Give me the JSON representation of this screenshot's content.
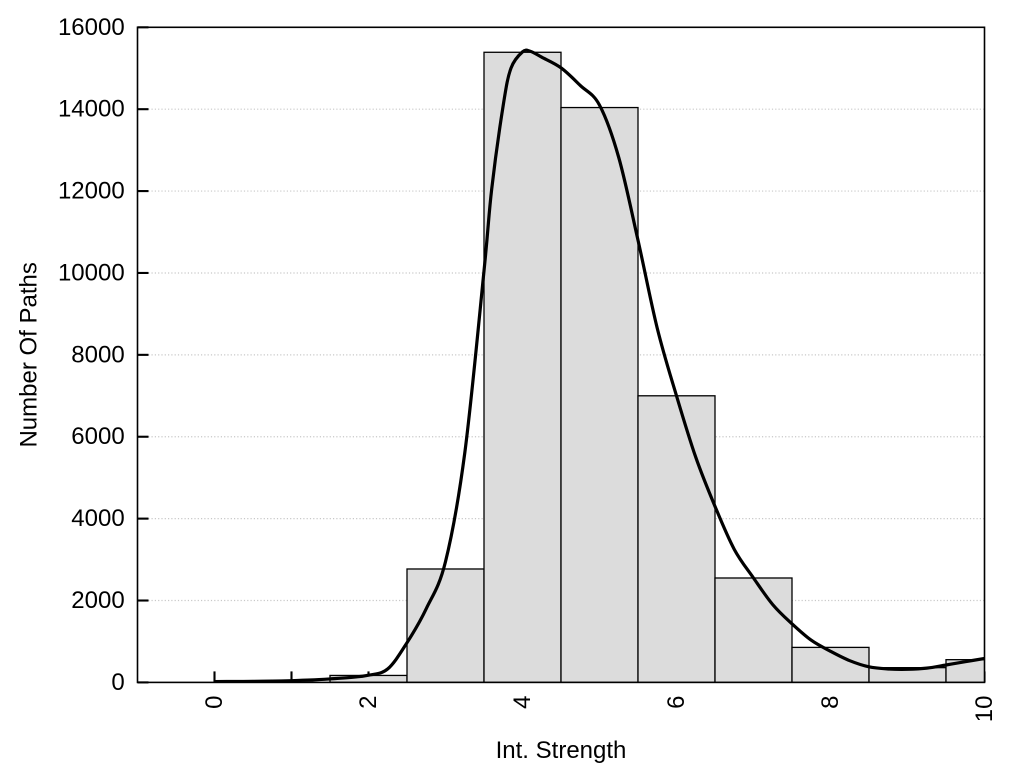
{
  "figure": {
    "background": "#ffffff"
  },
  "chart_data": {
    "type": "bar",
    "subtype": "histogram-with-density-curve",
    "title": "",
    "xlabel": "Int. Strength",
    "ylabel": "Number Of Paths",
    "xlim": [
      -1,
      10
    ],
    "ylim": [
      0,
      16000
    ],
    "x_tick_values": [
      0,
      1,
      2,
      3,
      4,
      5,
      6,
      7,
      8,
      9,
      10
    ],
    "x_tick_labels": {
      "0": "0",
      "2": "2",
      "4": "4",
      "6": "6",
      "8": "8",
      "10": "10"
    },
    "x_tick_label_rotation_deg": -90,
    "y_tick_values": [
      0,
      2000,
      4000,
      6000,
      8000,
      10000,
      12000,
      14000,
      16000
    ],
    "y_tick_labels": [
      "0",
      "2000",
      "4000",
      "6000",
      "8000",
      "10000",
      "12000",
      "14000",
      "16000"
    ],
    "grid": {
      "horizontal": true,
      "vertical": false,
      "style": "dotted",
      "at_y": [
        2000,
        4000,
        6000,
        8000,
        10000,
        12000,
        14000
      ]
    },
    "legend": "none",
    "bars": {
      "bin_width": 1,
      "centers": [
        0,
        1,
        2,
        3,
        4,
        5,
        6,
        7,
        8,
        9,
        10
      ],
      "values": [
        0,
        0,
        170,
        2770,
        15390,
        14040,
        7000,
        2550,
        855,
        360,
        555
      ]
    },
    "series": [
      {
        "name": "density-curve",
        "type": "line",
        "x": [
          0,
          0.25,
          0.5,
          0.75,
          1,
          1.25,
          1.5,
          1.75,
          2,
          2.25,
          2.5,
          2.75,
          3,
          3.25,
          3.5,
          3.6,
          3.75,
          3.85,
          4,
          4.1,
          4.25,
          4.5,
          4.75,
          5,
          5.25,
          5.5,
          5.75,
          6,
          6.25,
          6.5,
          6.75,
          7,
          7.25,
          7.5,
          7.75,
          8,
          8.25,
          8.5,
          8.75,
          9,
          9.25,
          9.5,
          9.75,
          10
        ],
        "values": [
          20,
          22,
          26,
          32,
          42,
          58,
          85,
          118,
          175,
          330,
          970,
          1800,
          2950,
          5600,
          10050,
          12050,
          14100,
          15000,
          15400,
          15415,
          15270,
          15010,
          14580,
          14100,
          12820,
          10800,
          8650,
          7000,
          5500,
          4300,
          3250,
          2550,
          1900,
          1430,
          1030,
          760,
          530,
          380,
          328,
          320,
          348,
          425,
          505,
          585
        ]
      }
    ]
  },
  "style": {
    "ink_color": "#000000",
    "bar_fill": "#dcdcdc",
    "bar_edge_color": "#000000",
    "grid_color": "#c8c8c8",
    "curve_color": "#000000",
    "background": "#ffffff"
  }
}
